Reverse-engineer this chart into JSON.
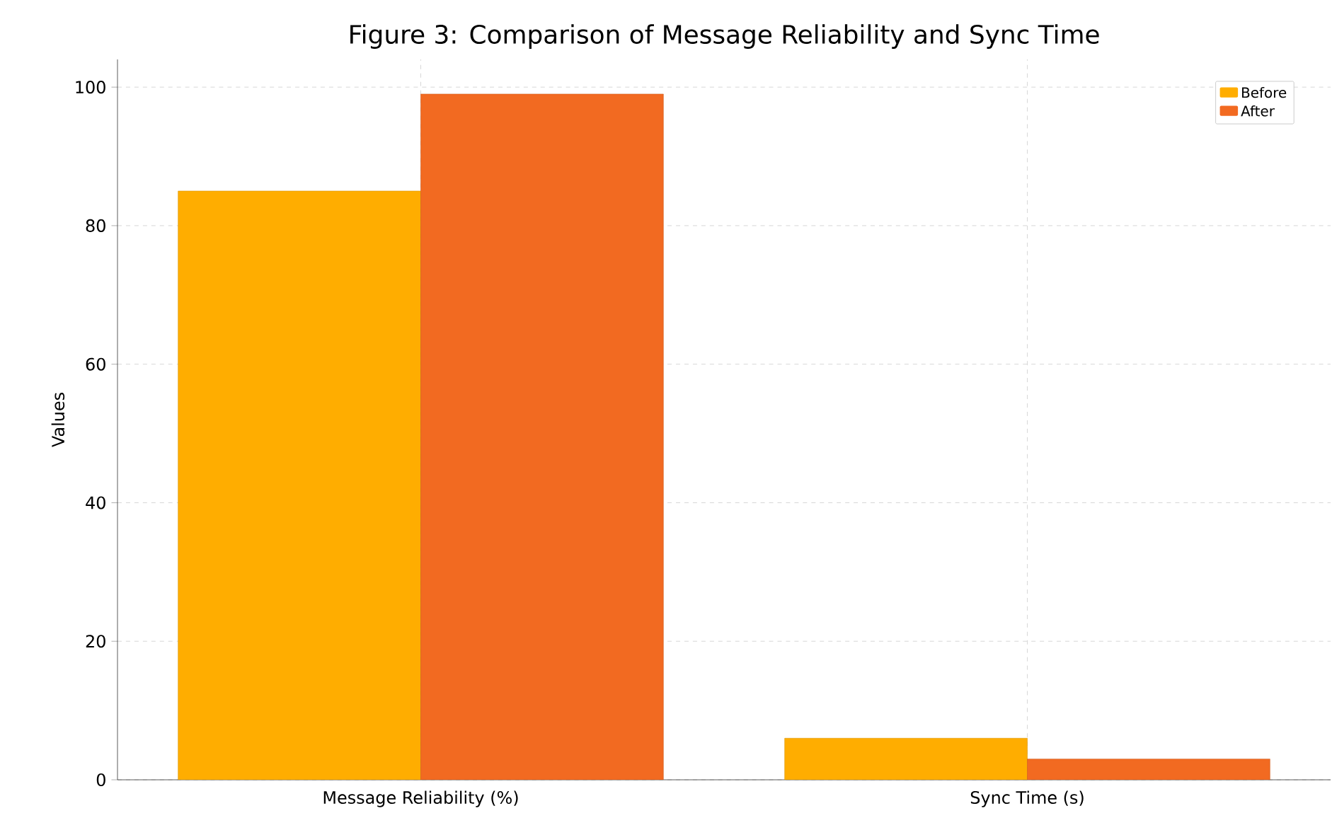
{
  "chart_data": {
    "type": "bar",
    "title": "Figure 3: Comparison of Message Reliability and Sync Time",
    "ylabel": "Values",
    "categories": [
      "Message Reliability (%)",
      "Sync Time (s)"
    ],
    "series": [
      {
        "name": "Before",
        "color": "#ffad00",
        "values": [
          85,
          6
        ]
      },
      {
        "name": "After",
        "color": "#f26a21",
        "values": [
          99,
          3
        ]
      }
    ],
    "ylim": [
      0,
      104
    ],
    "yticks": [
      0,
      20,
      40,
      60,
      80,
      100
    ],
    "grid": true,
    "legend": "top right"
  }
}
